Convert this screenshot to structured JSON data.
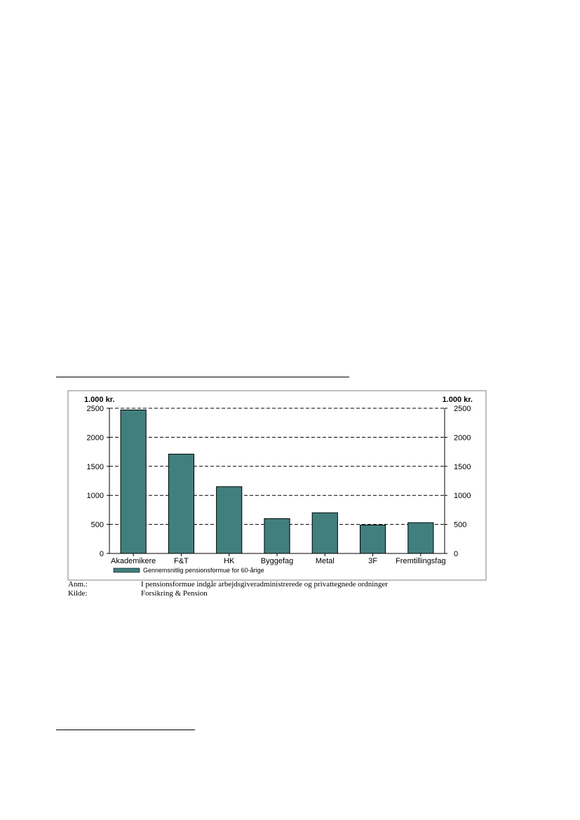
{
  "chart_data": {
    "type": "bar",
    "unit_left": "1.000 kr.",
    "unit_right": "1.000 kr.",
    "categories": [
      "Akademikere",
      "F&T",
      "HK",
      "Byggefag",
      "Metal",
      "3F",
      "Fremtillingsfag"
    ],
    "series": [
      {
        "name": "Gennemsnitlig pensionsformue for 60-årige",
        "values": [
          2470,
          1710,
          1150,
          600,
          700,
          490,
          530
        ],
        "color": "#417f7f"
      }
    ],
    "ylim": [
      0,
      2500
    ],
    "yticks": [
      0,
      500,
      1000,
      1500,
      2000,
      2500
    ],
    "grid": "dashed",
    "legend_position": "bottom-left"
  },
  "notes": {
    "anm_label": "Anm.:",
    "anm_text": "I pensionsformue indgår arbejdsgiveradministrerede og privattegnede ordninger",
    "kilde_label": "Kilde:",
    "kilde_text": "Forsikring & Pension"
  }
}
